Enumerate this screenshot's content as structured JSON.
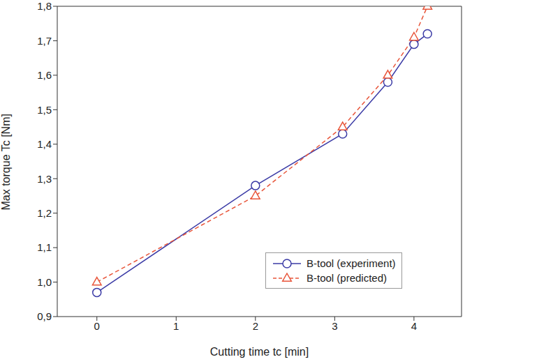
{
  "chart_data": {
    "type": "line",
    "x_label": "Cutting time tc [min]",
    "y_label": "Max torque Tc [Nm]",
    "xlim": [
      -0.5,
      4.6
    ],
    "xticks": [
      0,
      1,
      2,
      3,
      4
    ],
    "ylim": [
      0.9,
      1.8
    ],
    "yticks": [
      {
        "value": 0.9,
        "label": "0,9"
      },
      {
        "value": 1.0,
        "label": "1,0"
      },
      {
        "value": 1.1,
        "label": "1,1"
      },
      {
        "value": 1.2,
        "label": "1,2"
      },
      {
        "value": 1.3,
        "label": "1,3"
      },
      {
        "value": 1.4,
        "label": "1,4"
      },
      {
        "value": 1.5,
        "label": "1,5"
      },
      {
        "value": 1.6,
        "label": "1,6"
      },
      {
        "value": 1.7,
        "label": "1,7"
      },
      {
        "value": 1.8,
        "label": "1,8"
      }
    ],
    "grid": false,
    "legend": "lower right",
    "series": [
      {
        "name": "B-tool (experiment)",
        "color": "#3b3ba6",
        "marker": "circle",
        "line_style": "solid",
        "x": [
          0,
          2,
          3.1,
          3.67,
          4,
          4.17
        ],
        "values": [
          0.97,
          1.28,
          1.43,
          1.58,
          1.69,
          1.72
        ]
      },
      {
        "name": "B-tool (predicted)",
        "color": "#e8553a",
        "marker": "triangle",
        "line_style": "dashed",
        "x": [
          0,
          2,
          3.1,
          3.67,
          4,
          4.17
        ],
        "values": [
          1.0,
          1.25,
          1.45,
          1.6,
          1.71,
          1.8
        ]
      }
    ]
  }
}
